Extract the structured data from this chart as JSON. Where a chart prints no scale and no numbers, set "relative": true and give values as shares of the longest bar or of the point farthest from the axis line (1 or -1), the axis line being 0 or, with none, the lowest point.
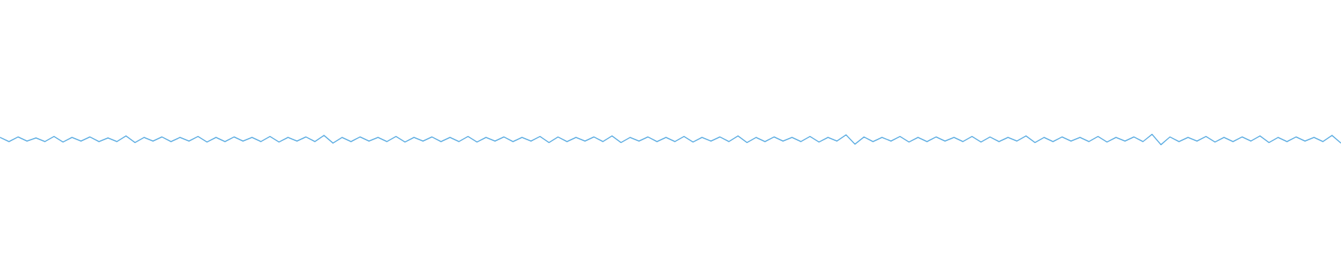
{
  "chart_data": {
    "type": "line",
    "relative": true,
    "color": "#5dade2",
    "marker": "none",
    "legend": false,
    "categories": [
      null,
      null,
      null,
      null,
      null,
      null,
      null,
      null,
      null,
      null,
      null,
      null,
      null,
      null,
      null,
      null,
      null,
      null,
      null,
      null,
      null,
      null,
      null,
      null,
      null,
      null,
      null,
      null,
      null,
      null,
      null,
      null,
      null,
      null,
      null,
      null,
      null,
      null,
      null,
      null,
      null,
      null,
      null,
      null,
      null,
      null,
      null,
      null,
      null,
      null,
      null,
      null,
      null,
      null,
      null,
      null,
      null,
      null,
      null,
      null,
      null,
      null,
      null,
      null,
      null,
      null,
      null,
      null,
      null,
      null,
      null,
      null,
      null,
      null,
      null,
      null,
      null,
      null,
      null,
      null,
      null,
      null,
      null,
      null,
      null,
      null,
      null,
      null,
      null,
      null,
      null,
      null,
      null,
      null,
      null,
      null,
      null,
      null,
      null,
      null,
      null,
      null,
      null,
      null,
      null,
      null,
      null,
      null,
      null,
      null,
      null,
      null,
      null,
      null,
      null,
      null,
      null,
      null,
      null,
      null,
      null,
      null,
      null,
      null,
      null,
      null,
      null,
      null,
      null,
      null,
      null,
      null,
      null,
      null,
      null,
      null,
      null,
      null,
      null,
      null,
      null,
      null,
      null,
      null,
      null,
      null,
      null,
      null,
      null,
      null
    ],
    "values": [
      0.7,
      0.3,
      0.75,
      0.35,
      0.65,
      0.3,
      0.8,
      0.25,
      0.7,
      0.35,
      0.75,
      0.3,
      0.65,
      0.3,
      0.85,
      0.2,
      0.7,
      0.35,
      0.75,
      0.3,
      0.7,
      0.35,
      0.8,
      0.25,
      0.7,
      0.3,
      0.75,
      0.35,
      0.7,
      0.3,
      0.8,
      0.25,
      0.7,
      0.35,
      0.75,
      0.3,
      0.9,
      0.15,
      0.7,
      0.3,
      0.75,
      0.35,
      0.7,
      0.3,
      0.8,
      0.25,
      0.7,
      0.35,
      0.75,
      0.3,
      0.7,
      0.3,
      0.8,
      0.25,
      0.7,
      0.35,
      0.75,
      0.3,
      0.7,
      0.35,
      0.8,
      0.2,
      0.75,
      0.3,
      0.7,
      0.35,
      0.75,
      0.3,
      0.85,
      0.2,
      0.7,
      0.35,
      0.75,
      0.3,
      0.7,
      0.3,
      0.8,
      0.25,
      0.7,
      0.35,
      0.75,
      0.3,
      0.85,
      0.2,
      0.7,
      0.3,
      0.75,
      0.35,
      0.7,
      0.3,
      0.8,
      0.25,
      0.7,
      0.35,
      0.95,
      0.05,
      0.75,
      0.3,
      0.7,
      0.35,
      0.8,
      0.25,
      0.7,
      0.3,
      0.75,
      0.35,
      0.7,
      0.3,
      0.8,
      0.25,
      0.75,
      0.3,
      0.7,
      0.35,
      0.85,
      0.2,
      0.7,
      0.3,
      0.75,
      0.35,
      0.7,
      0.3,
      0.8,
      0.25,
      0.7,
      0.35,
      0.75,
      0.3,
      1,
      0,
      0.75,
      0.3,
      0.7,
      0.35,
      0.8,
      0.25,
      0.7,
      0.3,
      0.75,
      0.35,
      0.85,
      0.2,
      0.7,
      0.3,
      0.75,
      0.35,
      0.7,
      0.3,
      0.9,
      0.15
    ]
  }
}
